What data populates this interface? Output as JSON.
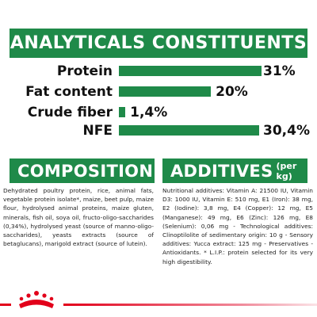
{
  "brand_color": "#1f8a49",
  "accent_color": "#e2001a",
  "header": {
    "title": "ANALYTICALS CONSTITUENTS"
  },
  "constituents": [
    {
      "label": "Protein",
      "value": "31%",
      "fraction": 0.31
    },
    {
      "label": "Fat content",
      "value": "20%",
      "fraction": 0.2
    },
    {
      "label": "Crude fiber",
      "value": "1,4%",
      "fraction": 0.014
    },
    {
      "label": "NFE",
      "value": "30,4%",
      "fraction": 0.304
    }
  ],
  "composition": {
    "title": "COMPOSITION",
    "text": "Dehydrated poultry protein, rice, animal fats, vegetable protein isolate*, maize, beet pulp, maize flour, hydrolysed animal proteins, maize gluten, minerals, fish oil, soya oil, fructo-oligo-saccharides (0,34%), hydrolysed yeast (source of manno-oligo-saccharides), yeasts extracts (source of betaglucans), marigold extract (source of lutein)."
  },
  "additives": {
    "title": "ADDITIVES",
    "suffix": "(per kg)",
    "text": "Nutritional additives: Vitamin A: 21500 IU, Vitamin D3: 1000 IU, Vitamin E: 510 mg, E1 (Iron): 38 mg, E2 (Iodine): 3,8 mg, E4 (Copper): 12 mg, E5 (Manganese): 49 mg, E6 (Zinc): 126 mg, E8 (Selenium): 0,06 mg - Technological additives: Clinoptilolite of sedimentary origin: 10 g - Sensory additives: Yucca extract: 125 mg - Preservatives - Antioxidants. * L.I.P.: protein selected for its very high digestibility."
  },
  "logo": {
    "icon": "royal-canin-crown-logo"
  }
}
